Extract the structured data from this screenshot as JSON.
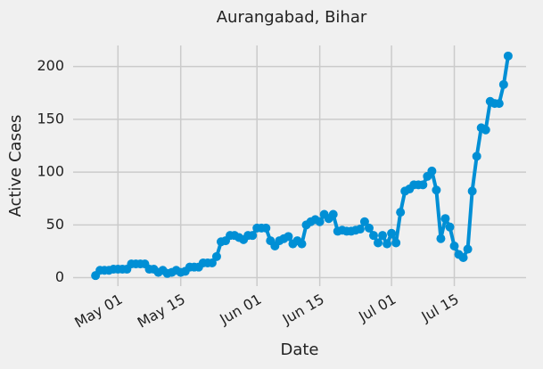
{
  "chart_data": {
    "type": "line",
    "title": "Aurangabad, Bihar",
    "xlabel": "Date",
    "ylabel": "Active Cases",
    "x": [
      "Apr 26",
      "Apr 27",
      "Apr 28",
      "Apr 29",
      "Apr 30",
      "May 01",
      "May 02",
      "May 03",
      "May 04",
      "May 05",
      "May 06",
      "May 07",
      "May 08",
      "May 09",
      "May 10",
      "May 11",
      "May 12",
      "May 13",
      "May 14",
      "May 15",
      "May 16",
      "May 17",
      "May 18",
      "May 19",
      "May 20",
      "May 21",
      "May 22",
      "May 23",
      "May 24",
      "May 25",
      "May 26",
      "May 27",
      "May 28",
      "May 29",
      "May 30",
      "May 31",
      "Jun 01",
      "Jun 02",
      "Jun 03",
      "Jun 04",
      "Jun 05",
      "Jun 06",
      "Jun 07",
      "Jun 08",
      "Jun 09",
      "Jun 10",
      "Jun 11",
      "Jun 12",
      "Jun 13",
      "Jun 14",
      "Jun 15",
      "Jun 16",
      "Jun 17",
      "Jun 18",
      "Jun 19",
      "Jun 20",
      "Jun 21",
      "Jun 22",
      "Jun 23",
      "Jun 24",
      "Jun 25",
      "Jun 26",
      "Jun 27",
      "Jun 28",
      "Jun 29",
      "Jun 30",
      "Jul 01",
      "Jul 02",
      "Jul 03",
      "Jul 04",
      "Jul 05",
      "Jul 06",
      "Jul 07",
      "Jul 08",
      "Jul 09",
      "Jul 10",
      "Jul 11",
      "Jul 12",
      "Jul 13",
      "Jul 14",
      "Jul 15",
      "Jul 16",
      "Jul 17",
      "Jul 18",
      "Jul 19",
      "Jul 20",
      "Jul 21",
      "Jul 22",
      "Jul 23",
      "Jul 24",
      "Jul 25",
      "Jul 26",
      "Jul 27"
    ],
    "values": [
      2,
      7,
      7,
      7,
      8,
      8,
      8,
      8,
      13,
      13,
      13,
      13,
      8,
      8,
      5,
      7,
      4,
      5,
      7,
      5,
      6,
      10,
      10,
      10,
      14,
      14,
      14,
      20,
      34,
      35,
      40,
      40,
      38,
      36,
      40,
      40,
      47,
      47,
      47,
      35,
      30,
      35,
      37,
      39,
      32,
      35,
      32,
      50,
      53,
      55,
      53,
      60,
      56,
      60,
      44,
      45,
      44,
      44,
      45,
      46,
      53,
      47,
      40,
      33,
      40,
      32,
      42,
      33,
      62,
      82,
      84,
      88,
      88,
      88,
      96,
      101,
      83,
      37,
      56,
      48,
      30,
      22,
      19,
      27,
      82,
      115,
      142,
      140,
      167,
      165,
      165,
      183,
      210
    ],
    "color": "#008fd5",
    "xlim": [
      "Apr 21",
      "Jul 31"
    ],
    "xticks": [
      "May 01",
      "May 15",
      "Jun 01",
      "Jun 15",
      "Jul 01",
      "Jul 15"
    ],
    "ylim": [
      -8,
      220
    ],
    "yticks": [
      0,
      50,
      100,
      150,
      200
    ],
    "grid": true
  }
}
